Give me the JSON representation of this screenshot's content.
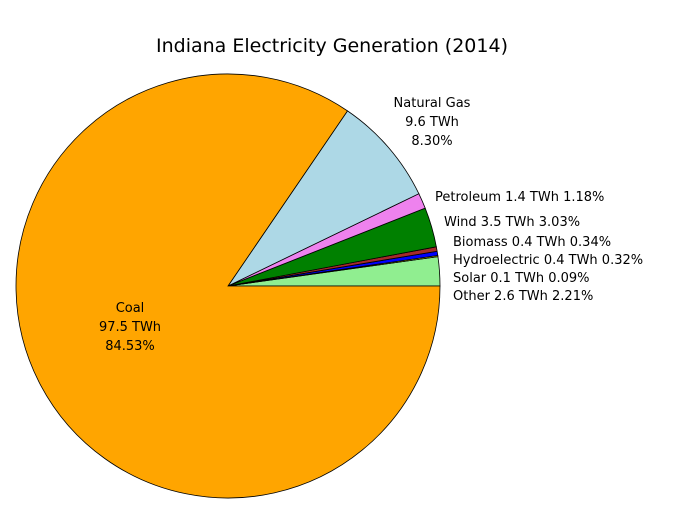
{
  "chart_data": {
    "type": "pie",
    "title": "Indiana Electricity Generation (2014)",
    "start_angle": 0,
    "direction": "counterclockwise",
    "slices": [
      {
        "name": "Other",
        "value": 2.6,
        "unit": "TWh",
        "percent": "2.21%",
        "color": "#90ee90"
      },
      {
        "name": "Solar",
        "value": 0.1,
        "unit": "TWh",
        "percent": "0.09%",
        "color": "#ffff00"
      },
      {
        "name": "Hydroelectric",
        "value": 0.4,
        "unit": "TWh",
        "percent": "0.32%",
        "color": "#0000ff"
      },
      {
        "name": "Biomass",
        "value": 0.4,
        "unit": "TWh",
        "percent": "0.34%",
        "color": "#a52a2a"
      },
      {
        "name": "Wind",
        "value": 3.5,
        "unit": "TWh",
        "percent": "3.03%",
        "color": "#008000"
      },
      {
        "name": "Petroleum",
        "value": 1.4,
        "unit": "TWh",
        "percent": "1.18%",
        "color": "#ee82ee"
      },
      {
        "name": "Natural Gas",
        "value": 9.6,
        "unit": "TWh",
        "percent": "8.30%",
        "color": "#add8e6"
      },
      {
        "name": "Coal",
        "value": 97.5,
        "unit": "TWh",
        "percent": "84.53%",
        "color": "#ffa500"
      }
    ]
  }
}
